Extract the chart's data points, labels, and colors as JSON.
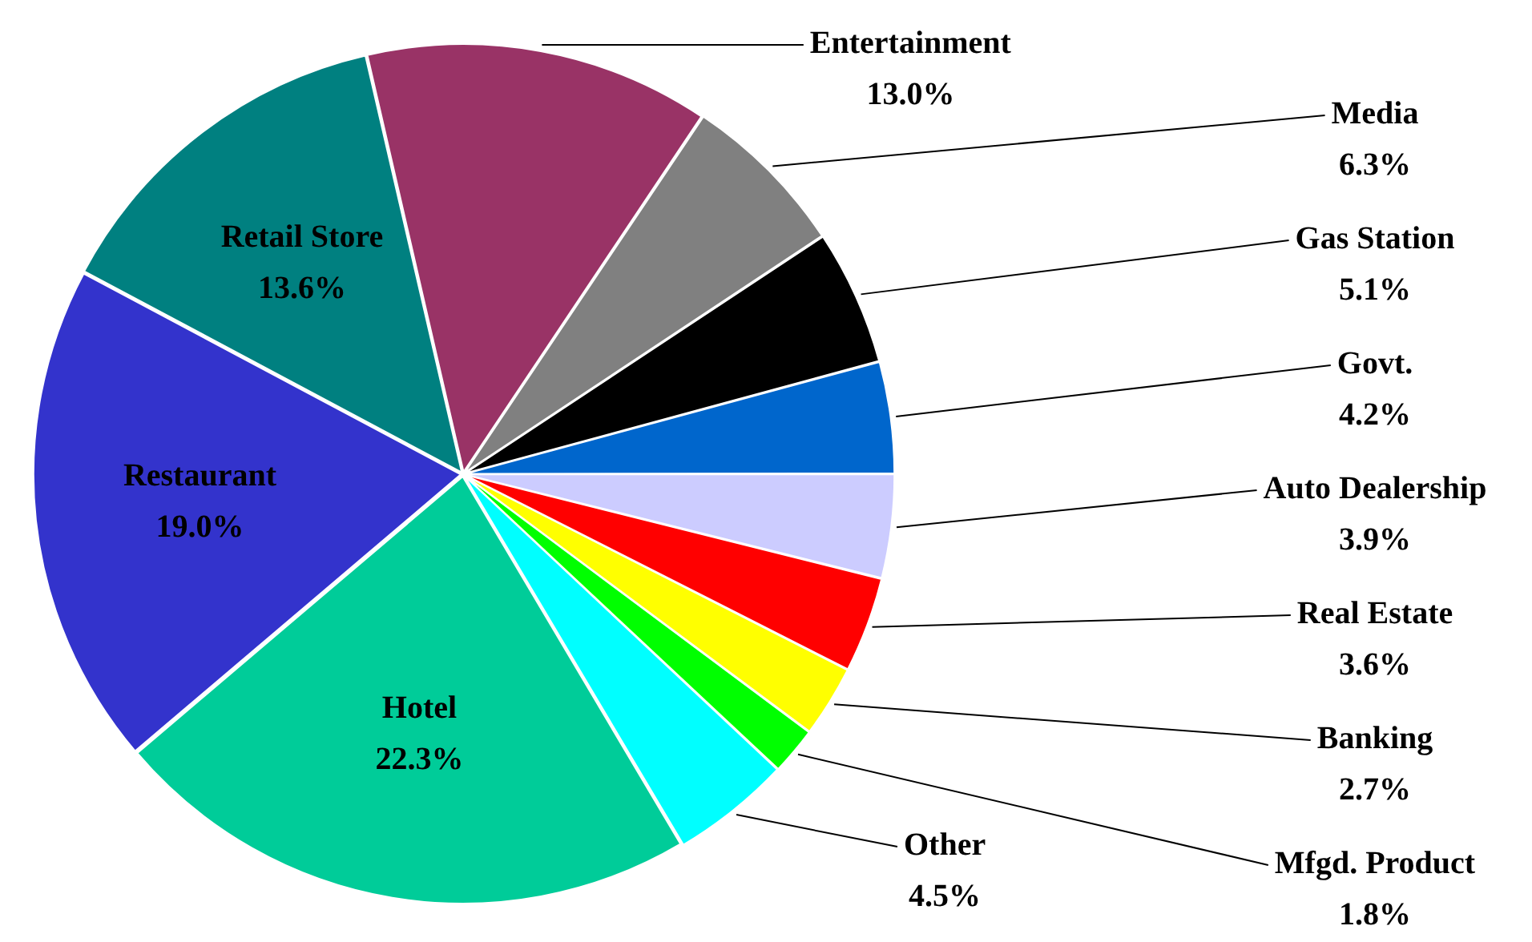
{
  "chart_data": {
    "type": "pie",
    "categories": [
      "Entertainment",
      "Media",
      "Gas Station",
      "Govt.",
      "Auto Dealership",
      "Real Estate",
      "Banking",
      "Mfgd. Product",
      "Other",
      "Hotel",
      "Restaurant",
      "Retail Store"
    ],
    "values": [
      13.0,
      6.3,
      5.1,
      4.2,
      3.9,
      3.6,
      2.7,
      1.8,
      4.5,
      22.3,
      19.0,
      13.6
    ],
    "value_labels": [
      "13.0%",
      "6.3%",
      "5.1%",
      "4.2%",
      "3.9%",
      "3.6%",
      "2.7%",
      "1.8%",
      "4.5%",
      "22.3%",
      "19.0%",
      "13.6%"
    ],
    "colors": [
      "#993366",
      "#808080",
      "#000000",
      "#0066cc",
      "#ccccff",
      "#ff0000",
      "#ffff00",
      "#00ff00",
      "#00ffff",
      "#00cc99",
      "#3333cc",
      "#008080"
    ],
    "legend": false
  }
}
